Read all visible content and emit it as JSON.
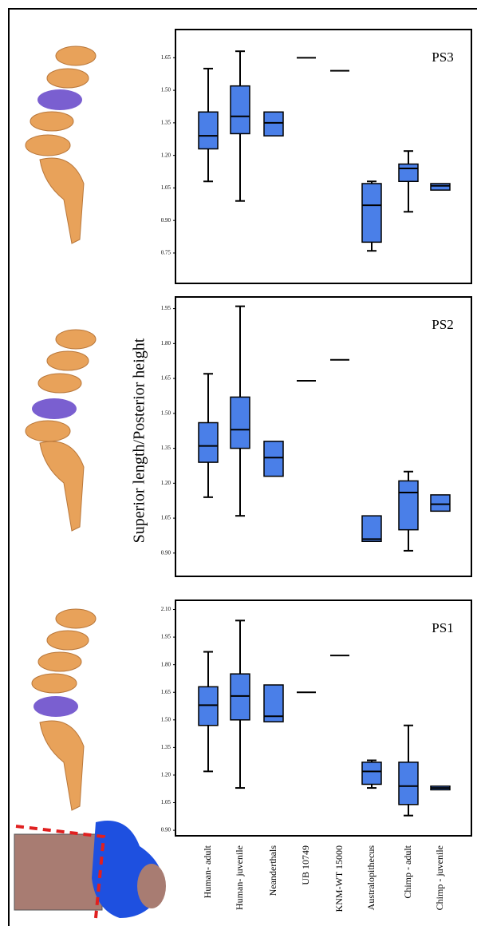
{
  "chart_data": [
    {
      "type": "box",
      "title": "PS3",
      "ylim": [
        0.61,
        1.78
      ],
      "yticks": [
        {
          "value": 0.75,
          "label": "0.75"
        },
        {
          "value": 0.9,
          "label": "0.90"
        },
        1.05,
        {
          "value": 1.2,
          "label": "1.20"
        },
        1.35,
        {
          "value": 1.5,
          "label": "1.50"
        },
        1.65
      ],
      "color": "#4a7fe8",
      "boxes": [
        {
          "min": 1.08,
          "q1": 1.23,
          "median": 1.29,
          "q3": 1.4,
          "max": 1.6
        },
        {
          "min": 0.99,
          "q1": 1.3,
          "median": 1.38,
          "q3": 1.52,
          "max": 1.68
        },
        {
          "q1": 1.29,
          "median": 1.35,
          "q3": 1.4
        },
        {
          "median": 1.65
        },
        {
          "median": 1.59
        },
        {
          "min": 0.76,
          "q1": 0.8,
          "median": 0.97,
          "q3": 1.07,
          "max": 1.08
        },
        {
          "min": 0.94,
          "q1": 1.08,
          "median": 1.14,
          "q3": 1.16,
          "max": 1.22
        },
        {
          "q1": 1.04,
          "median": 1.06,
          "q3": 1.07
        }
      ]
    },
    {
      "type": "box",
      "title": "PS2",
      "y_label": "Superior length/Posterior height",
      "ylim": [
        0.8,
        2.0
      ],
      "yticks": [
        {
          "value": 0.9,
          "label": "0.90"
        },
        1.05,
        {
          "value": 1.2,
          "label": "1.20"
        },
        1.35,
        {
          "value": 1.5,
          "label": "1.50"
        },
        1.65,
        {
          "value": 1.8,
          "label": "1.80"
        },
        1.95
      ],
      "color": "#4a7fe8",
      "boxes": [
        {
          "min": 1.14,
          "q1": 1.29,
          "median": 1.36,
          "q3": 1.46,
          "max": 1.67
        },
        {
          "min": 1.06,
          "q1": 1.35,
          "median": 1.43,
          "q3": 1.57,
          "max": 1.96
        },
        {
          "q1": 1.23,
          "median": 1.31,
          "q3": 1.38
        },
        {
          "median": 1.64
        },
        {
          "median": 1.73
        },
        {
          "q1": 0.95,
          "median": 0.96,
          "q3": 1.06
        },
        {
          "min": 0.91,
          "q1": 1.0,
          "median": 1.16,
          "q3": 1.21,
          "max": 1.25
        },
        {
          "q1": 1.08,
          "median": 1.11,
          "q3": 1.15
        }
      ]
    },
    {
      "type": "box",
      "title": "PS1",
      "ylim": [
        0.87,
        2.15
      ],
      "yticks": [
        {
          "value": 0.9,
          "label": "0.90"
        },
        1.05,
        {
          "value": 1.2,
          "label": "1.20"
        },
        1.35,
        {
          "value": 1.5,
          "label": "1.50"
        },
        1.65,
        {
          "value": 1.8,
          "label": "1.80"
        },
        1.95,
        {
          "value": 2.1,
          "label": "2.10"
        }
      ],
      "color": "#4a7fe8",
      "categories": [
        "Human- adult",
        "Human- juvenile",
        "Neanderthals",
        "UB 10749",
        "KNM-WT 15000",
        "Australopithecus",
        "Chimp - adult",
        "Chimp - juvenile"
      ],
      "boxes": [
        {
          "min": 1.22,
          "q1": 1.47,
          "median": 1.58,
          "q3": 1.68,
          "max": 1.87
        },
        {
          "min": 1.13,
          "q1": 1.5,
          "median": 1.63,
          "q3": 1.75,
          "max": 2.04
        },
        {
          "q1": 1.49,
          "median": 1.52,
          "q3": 1.69
        },
        {
          "median": 1.65
        },
        {
          "median": 1.85
        },
        {
          "min": 1.13,
          "q1": 1.15,
          "median": 1.22,
          "q3": 1.27,
          "max": 1.28
        },
        {
          "min": 0.98,
          "q1": 1.04,
          "median": 1.14,
          "q3": 1.27,
          "max": 1.47
        },
        {
          "q1": 1.12,
          "median": 1.13,
          "q3": 1.14
        }
      ]
    }
  ]
}
